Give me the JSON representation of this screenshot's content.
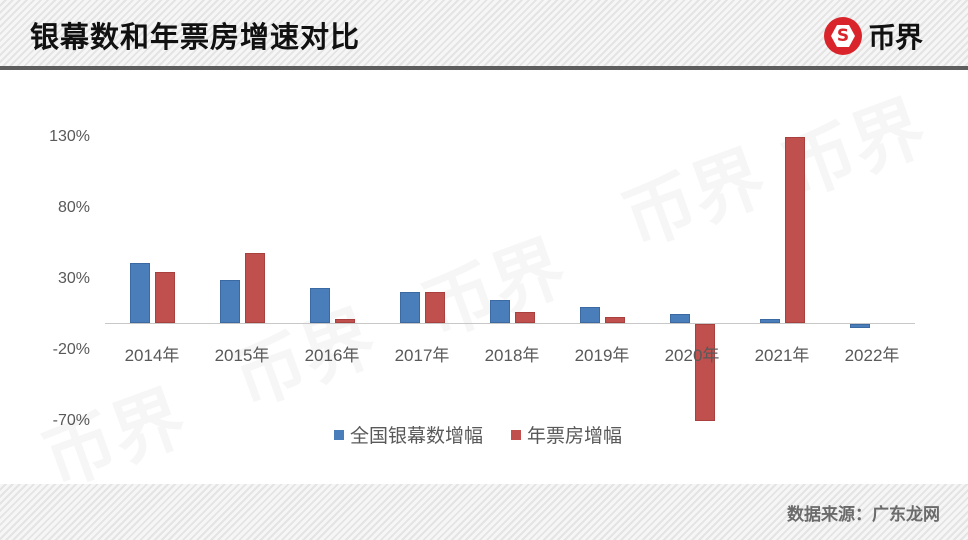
{
  "header": {
    "title": "银幕数和年票房增速对比",
    "logo_text": "币界",
    "logo_icon": "s-hexagon-logo-icon"
  },
  "footer": {
    "source": "数据来源：广东龙网"
  },
  "colors": {
    "blue": "#4a7ebb",
    "red": "#c0504d",
    "header_rule": "#5e5e5e",
    "logo_red": "#d8242a"
  },
  "chart_data": {
    "type": "bar",
    "title": "银幕数和年票房增速对比",
    "xlabel": "",
    "ylabel": "",
    "categories": [
      "2014年",
      "2015年",
      "2016年",
      "2017年",
      "2018年",
      "2019年",
      "2020年",
      "2021年",
      "2022年"
    ],
    "series": [
      {
        "name": "全国银幕数增幅",
        "color": "#4a7ebb",
        "values": [
          42,
          30,
          25,
          22,
          16,
          11,
          6,
          3,
          -3
        ]
      },
      {
        "name": "年票房增幅",
        "color": "#c0504d",
        "values": [
          36,
          49,
          3,
          22,
          8,
          4,
          -68,
          131,
          null
        ]
      }
    ],
    "yticks": [
      "130%",
      "80%",
      "30%",
      "-20%",
      "-70%"
    ],
    "ytick_values": [
      130,
      80,
      30,
      -20,
      -70
    ],
    "ylim": [
      -70,
      130
    ],
    "grid": false,
    "legend_position": "bottom"
  },
  "legend": [
    {
      "label": "全国银幕数增幅",
      "color": "#4a7ebb"
    },
    {
      "label": "年票房增幅",
      "color": "#c0504d"
    }
  ],
  "watermark": "币界"
}
